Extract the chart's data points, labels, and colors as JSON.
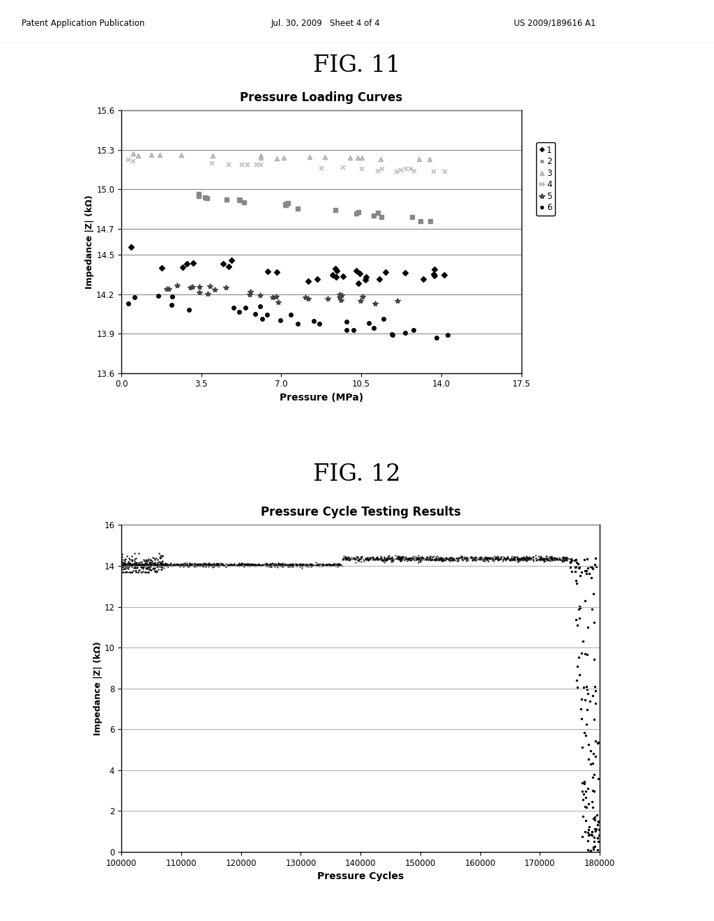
{
  "header_left": "Patent Application Publication",
  "header_mid": "Jul. 30, 2009   Sheet 4 of 4",
  "header_right": "US 2009/189616 A1",
  "fig11_label": "FIG. 11",
  "fig12_label": "FIG. 12",
  "fig11_title": "Pressure Loading Curves",
  "fig11_xlabel": "Pressure (MPa)",
  "fig11_ylabel": "Impedance |Z| (kΩ)",
  "fig11_xlim": [
    0,
    17.5
  ],
  "fig11_xticks": [
    0,
    3.5,
    7,
    10.5,
    14,
    17.5
  ],
  "fig11_ylim": [
    13.6,
    15.6
  ],
  "fig11_yticks": [
    13.6,
    13.9,
    14.2,
    14.5,
    14.7,
    15.0,
    15.3,
    15.6
  ],
  "fig12_title": "Pressure Cycle Testing Results",
  "fig12_xlabel": "Pressure Cycles",
  "fig12_ylabel": "Impedance |Z| (kΩ)",
  "fig12_xlim": [
    100000,
    180000
  ],
  "fig12_xticks": [
    100000,
    110000,
    120000,
    130000,
    140000,
    150000,
    160000,
    170000,
    180000
  ],
  "fig12_ylim": [
    0,
    16
  ],
  "fig12_yticks": [
    0,
    2,
    4,
    6,
    8,
    10,
    12,
    14,
    16
  ],
  "background_color": "#ffffff",
  "plot_bg_color": "#ffffff",
  "grid_color": "#aaaaaa",
  "text_color": "#000000"
}
